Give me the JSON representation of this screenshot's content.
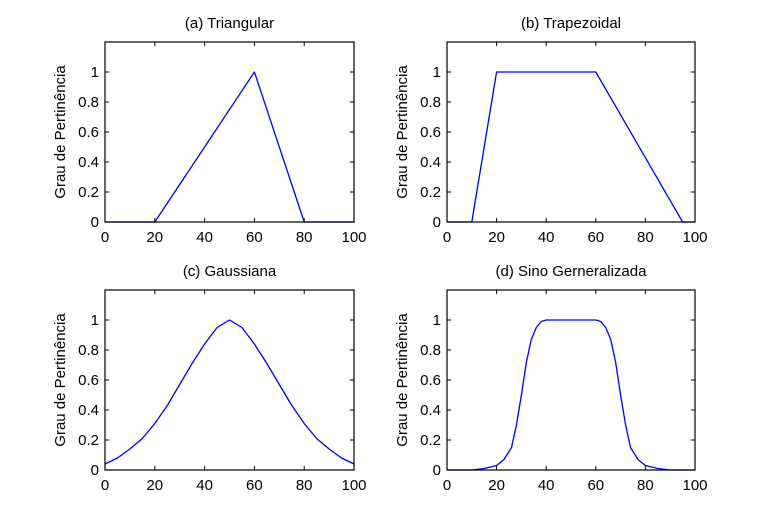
{
  "figure": {
    "line_color": "#0000ee",
    "axis_color": "#000000"
  },
  "chart_data": [
    {
      "type": "line",
      "title": "(a) Triangular",
      "xlabel": "",
      "ylabel": "Grau de Pertinência",
      "xlim": [
        0,
        100
      ],
      "ylim": [
        0,
        1.2
      ],
      "xticks": [
        0,
        20,
        40,
        60,
        80,
        100
      ],
      "xtick_labels": [
        "0",
        "20",
        "40",
        "60",
        "80",
        "100"
      ],
      "yticks": [
        0,
        0.2,
        0.4,
        0.6,
        0.8,
        1
      ],
      "ytick_labels": [
        "0",
        "0.2",
        "0.4",
        "0.6",
        "0.8",
        "1"
      ],
      "grid": false,
      "series": [
        {
          "name": "triangular",
          "x": [
            0,
            20,
            60,
            80,
            100
          ],
          "y": [
            0,
            0,
            1,
            0,
            0
          ]
        }
      ]
    },
    {
      "type": "line",
      "title": "(b) Trapezoidal",
      "xlabel": "",
      "ylabel": "Grau de Pertinência",
      "xlim": [
        0,
        100
      ],
      "ylim": [
        0,
        1.2
      ],
      "xticks": [
        0,
        20,
        40,
        60,
        80,
        100
      ],
      "xtick_labels": [
        "0",
        "20",
        "40",
        "60",
        "80",
        "100"
      ],
      "yticks": [
        0,
        0.2,
        0.4,
        0.6,
        0.8,
        1
      ],
      "ytick_labels": [
        "0",
        "0.2",
        "0.4",
        "0.6",
        "0.8",
        "1"
      ],
      "grid": false,
      "series": [
        {
          "name": "trapezoidal",
          "x": [
            0,
            10,
            20,
            60,
            95,
            100
          ],
          "y": [
            0,
            0,
            1,
            1,
            0,
            0
          ]
        }
      ]
    },
    {
      "type": "line",
      "title": "(c) Gaussiana",
      "xlabel": "",
      "ylabel": "Grau de Pertinência",
      "xlim": [
        0,
        100
      ],
      "ylim": [
        0,
        1.2
      ],
      "xticks": [
        0,
        20,
        40,
        60,
        80,
        100
      ],
      "xtick_labels": [
        "0",
        "20",
        "40",
        "60",
        "80",
        "100"
      ],
      "yticks": [
        0,
        0.2,
        0.4,
        0.6,
        0.8,
        1
      ],
      "ytick_labels": [
        "0",
        "0.2",
        "0.4",
        "0.6",
        "0.8",
        "1"
      ],
      "grid": false,
      "series": [
        {
          "name": "gaussiana",
          "x": [
            0,
            5,
            10,
            15,
            20,
            25,
            30,
            35,
            40,
            45,
            50,
            55,
            60,
            65,
            70,
            75,
            80,
            85,
            90,
            95,
            100
          ],
          "y": [
            0.04,
            0.08,
            0.14,
            0.21,
            0.31,
            0.43,
            0.57,
            0.71,
            0.84,
            0.95,
            1.0,
            0.95,
            0.84,
            0.71,
            0.57,
            0.43,
            0.31,
            0.21,
            0.14,
            0.08,
            0.04
          ]
        }
      ]
    },
    {
      "type": "line",
      "title": "(d) Sino Gerneralizada",
      "xlabel": "",
      "ylabel": "Grau de Pertinência",
      "xlim": [
        0,
        100
      ],
      "ylim": [
        0,
        1.2
      ],
      "xticks": [
        0,
        20,
        40,
        60,
        80,
        100
      ],
      "xtick_labels": [
        "0",
        "20",
        "40",
        "60",
        "80",
        "100"
      ],
      "yticks": [
        0,
        0.2,
        0.4,
        0.6,
        0.8,
        1
      ],
      "ytick_labels": [
        "0",
        "0.2",
        "0.4",
        "0.6",
        "0.8",
        "1"
      ],
      "grid": false,
      "series": [
        {
          "name": "sino-generalizada",
          "x": [
            0,
            10,
            15,
            20,
            23,
            26,
            28,
            30,
            32,
            34,
            36,
            38,
            40,
            60,
            62,
            64,
            66,
            68,
            70,
            72,
            74,
            77,
            80,
            85,
            90,
            100
          ],
          "y": [
            0,
            0,
            0.01,
            0.03,
            0.07,
            0.15,
            0.3,
            0.5,
            0.72,
            0.87,
            0.95,
            0.99,
            1,
            1,
            0.99,
            0.95,
            0.87,
            0.72,
            0.5,
            0.3,
            0.15,
            0.07,
            0.03,
            0.01,
            0,
            0
          ]
        }
      ]
    }
  ]
}
